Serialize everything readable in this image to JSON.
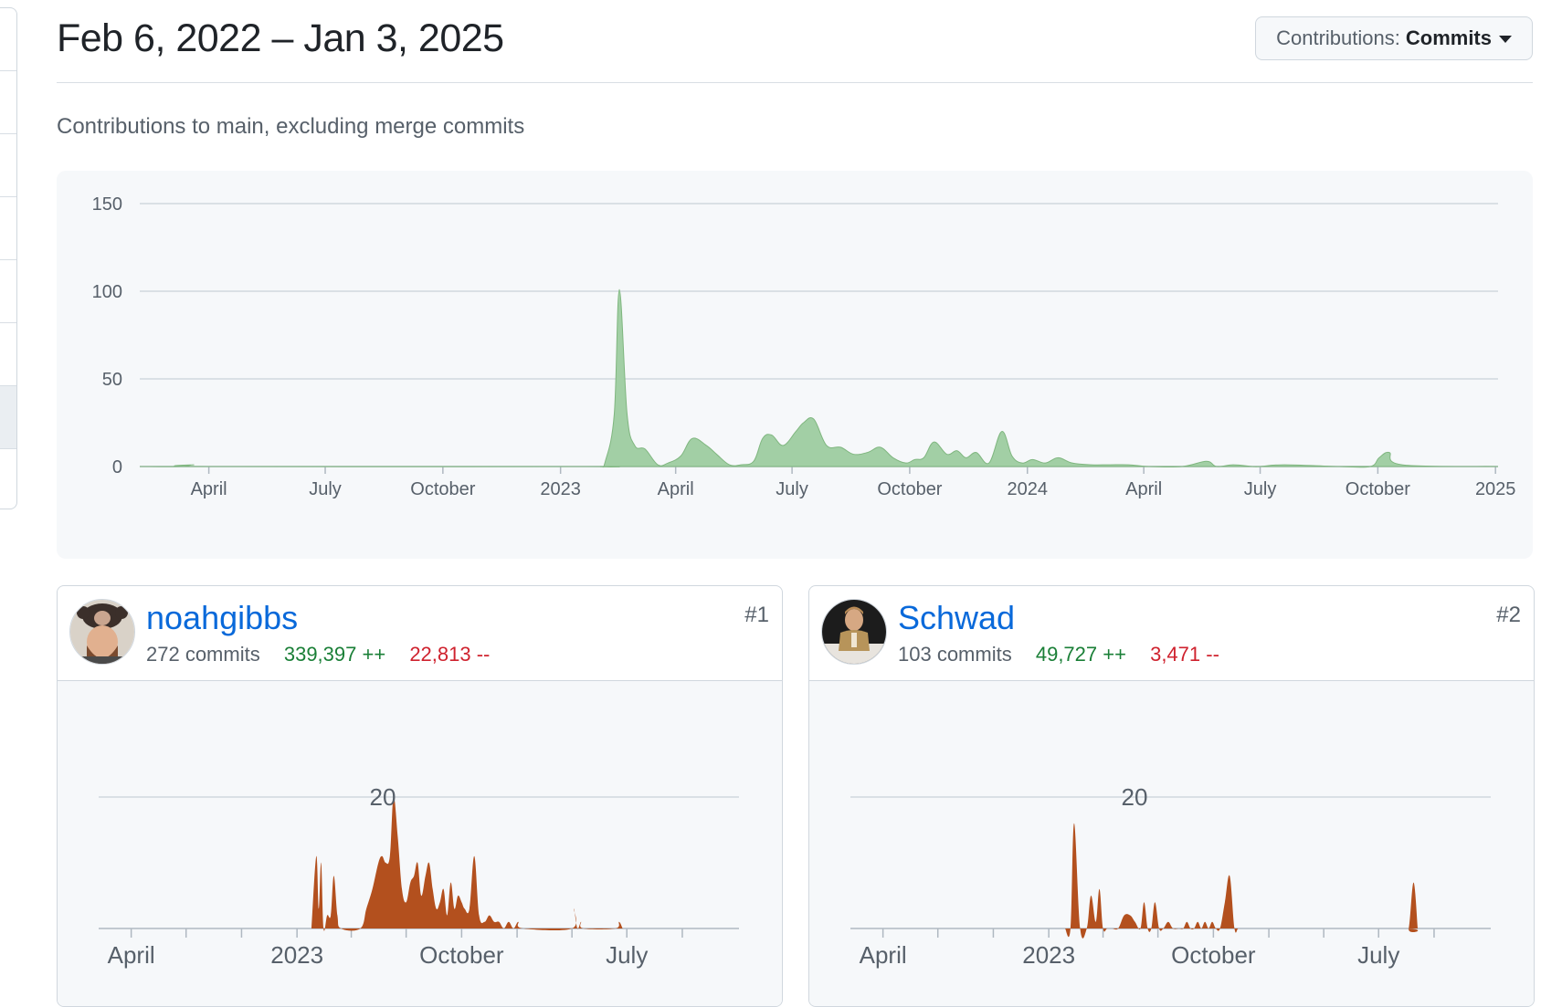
{
  "header": {
    "date_range": "Feb 6, 2022 – Jan 3, 2025",
    "dropdown_label": "Contributions:",
    "dropdown_value": "Commits"
  },
  "subtitle": "Contributions to main, excluding merge commits",
  "colors": {
    "main_fill": "#a2cfa5",
    "main_stroke": "#7fb67f",
    "contributor_fill": "#b3501e",
    "grid": "#d0d7de"
  },
  "contributors": [
    {
      "username": "noahgibbs",
      "commits": "272 commits",
      "additions": "339,397 ++",
      "deletions": "22,813 --",
      "rank": "#1",
      "avatar": "avatar-noahgibbs"
    },
    {
      "username": "Schwad",
      "commits": "103 commits",
      "additions": "49,727 ++",
      "deletions": "3,471 --",
      "rank": "#2",
      "avatar": "avatar-schwad"
    }
  ],
  "chart_data": [
    {
      "type": "area",
      "title": "",
      "ylim": [
        0,
        150
      ],
      "y_ticks": [
        0,
        50,
        100,
        150
      ],
      "x_range": [
        "2022-02-06",
        "2025-01-03"
      ],
      "x_tick_labels": [
        {
          "date": "2022-04-01",
          "label": "April"
        },
        {
          "date": "2022-07-01",
          "label": "July"
        },
        {
          "date": "2022-10-01",
          "label": "October"
        },
        {
          "date": "2023-01-01",
          "label": "2023"
        },
        {
          "date": "2023-04-01",
          "label": "April"
        },
        {
          "date": "2023-07-01",
          "label": "July"
        },
        {
          "date": "2023-10-01",
          "label": "October"
        },
        {
          "date": "2024-01-01",
          "label": "2024"
        },
        {
          "date": "2024-04-01",
          "label": "April"
        },
        {
          "date": "2024-07-01",
          "label": "July"
        },
        {
          "date": "2024-10-01",
          "label": "October"
        },
        {
          "date": "2025-01-01",
          "label": "2025"
        }
      ],
      "grid": true,
      "series": [
        {
          "x": [
            "2022-02-06",
            "2022-03-10",
            "2022-03-20",
            "2022-04-01",
            "2023-01-20",
            "2023-02-01",
            "2023-02-05",
            "2023-02-12",
            "2023-02-16",
            "2023-02-22",
            "2023-02-28",
            "2023-03-08",
            "2023-03-18",
            "2023-03-26",
            "2023-04-05",
            "2023-04-14",
            "2023-04-25",
            "2023-05-03",
            "2023-05-13",
            "2023-05-22",
            "2023-06-01",
            "2023-06-08",
            "2023-06-15",
            "2023-06-24",
            "2023-07-04",
            "2023-07-10",
            "2023-07-18",
            "2023-07-28",
            "2023-08-08",
            "2023-08-18",
            "2023-08-29",
            "2023-09-08",
            "2023-09-18",
            "2023-09-28",
            "2023-10-05",
            "2023-10-12",
            "2023-10-20",
            "2023-10-30",
            "2023-11-07",
            "2023-11-14",
            "2023-11-22",
            "2023-12-02",
            "2023-12-12",
            "2023-12-20",
            "2023-12-28",
            "2024-01-05",
            "2024-01-15",
            "2024-01-25",
            "2024-02-05",
            "2024-02-20",
            "2024-03-05",
            "2024-03-20",
            "2024-04-05",
            "2024-05-01",
            "2024-05-20",
            "2024-05-28",
            "2024-06-10",
            "2024-06-25",
            "2024-07-01",
            "2024-07-20",
            "2024-09-01",
            "2024-09-25",
            "2024-10-02",
            "2024-10-10",
            "2024-10-20",
            "2025-01-03"
          ],
          "y": [
            0,
            0,
            1,
            0,
            0,
            0,
            3,
            30,
            101,
            30,
            12,
            10,
            1,
            2,
            6,
            16,
            12,
            7,
            1,
            1,
            3,
            16,
            18,
            12,
            20,
            25,
            27,
            12,
            11,
            7,
            8,
            11,
            5,
            2,
            4,
            5,
            14,
            7,
            9,
            5,
            8,
            2,
            20,
            6,
            2,
            4,
            2,
            5,
            2,
            1,
            1,
            1,
            0,
            0,
            3,
            0,
            1,
            0,
            0,
            1,
            0,
            0,
            5,
            8,
            1,
            0
          ]
        }
      ]
    },
    {
      "type": "area",
      "title": "",
      "ytick": 20,
      "x_range": [
        "2022-02-06",
        "2025-01-03"
      ],
      "x_tick_labels": [
        {
          "date": "2022-04-01",
          "label": "April"
        },
        {
          "date": "2023-01-01",
          "label": "2023"
        },
        {
          "date": "2023-10-01",
          "label": "October"
        },
        {
          "date": "2024-07-01",
          "label": "July"
        }
      ],
      "grid": true,
      "series": [
        {
          "x": [
            "2023-01-25",
            "2023-02-02",
            "2023-02-06",
            "2023-02-10",
            "2023-02-14",
            "2023-02-20",
            "2023-02-26",
            "2023-03-03",
            "2023-03-09",
            "2023-03-15",
            "2023-04-16",
            "2023-04-26",
            "2023-05-06",
            "2023-05-16",
            "2023-05-22",
            "2023-05-28",
            "2023-06-04",
            "2023-06-10",
            "2023-06-17",
            "2023-06-24",
            "2023-07-01",
            "2023-07-08",
            "2023-07-14",
            "2023-07-20",
            "2023-07-26",
            "2023-08-02",
            "2023-08-08",
            "2023-08-14",
            "2023-08-20",
            "2023-08-26",
            "2023-09-01",
            "2023-09-07",
            "2023-09-13",
            "2023-09-19",
            "2023-09-25",
            "2023-10-01",
            "2023-10-06",
            "2023-10-14",
            "2023-10-22",
            "2023-10-30",
            "2023-11-08",
            "2023-11-16",
            "2023-11-24",
            "2023-12-02",
            "2023-12-10",
            "2023-12-18",
            "2023-12-26",
            "2024-01-03",
            "2024-01-11",
            "2024-04-01",
            "2024-04-04",
            "2024-04-10",
            "2024-04-16",
            "2024-04-20",
            "2024-06-12",
            "2024-06-18",
            "2024-06-24"
          ],
          "y": [
            0,
            11,
            3,
            10,
            0,
            2,
            2,
            8,
            2,
            0,
            0,
            3,
            6,
            10,
            11,
            10,
            11,
            20,
            14,
            6,
            4,
            7,
            8,
            10,
            5,
            8,
            10,
            6,
            3,
            4,
            6,
            2,
            7,
            3,
            5,
            4,
            3,
            3,
            11,
            2,
            1,
            2,
            1,
            1,
            0,
            1,
            0,
            1,
            0,
            0,
            3,
            0,
            1,
            0,
            0,
            1,
            0
          ]
        }
      ]
    },
    {
      "type": "area",
      "title": "",
      "ytick": 20,
      "x_range": [
        "2022-02-06",
        "2025-01-03"
      ],
      "x_tick_labels": [
        {
          "date": "2022-04-01",
          "label": "April"
        },
        {
          "date": "2023-01-01",
          "label": "2023"
        },
        {
          "date": "2023-10-01",
          "label": "October"
        },
        {
          "date": "2024-07-01",
          "label": "July"
        }
      ],
      "grid": true,
      "series": [
        {
          "x": [
            "2023-01-28",
            "2023-02-06",
            "2023-02-12",
            "2023-02-22",
            "2023-03-05",
            "2023-03-12",
            "2023-03-20",
            "2023-03-26",
            "2023-04-01",
            "2023-04-08",
            "2023-04-16",
            "2023-04-26",
            "2023-05-06",
            "2023-05-16",
            "2023-05-24",
            "2023-06-02",
            "2023-06-08",
            "2023-06-14",
            "2023-06-20",
            "2023-06-26",
            "2023-07-03",
            "2023-07-10",
            "2023-07-18",
            "2023-07-26",
            "2023-08-05",
            "2023-08-12",
            "2023-08-18",
            "2023-08-24",
            "2023-08-30",
            "2023-09-05",
            "2023-09-11",
            "2023-09-17",
            "2023-09-23",
            "2023-09-29",
            "2023-10-05",
            "2023-10-12",
            "2023-10-20",
            "2023-10-28",
            "2023-11-05",
            "2023-11-11",
            "2023-11-17",
            "2023-11-23",
            "2024-08-12",
            "2024-08-20",
            "2024-08-28",
            "2024-09-04"
          ],
          "y": [
            0,
            0,
            16,
            0,
            0,
            5,
            1,
            6,
            0,
            0,
            0,
            0,
            2,
            2,
            1,
            0,
            4,
            0,
            0,
            4,
            0,
            0,
            1,
            0,
            0,
            0,
            1,
            0,
            0,
            1,
            0,
            1,
            0,
            1,
            0,
            0,
            4,
            8,
            0,
            0,
            0,
            0,
            0,
            0,
            7,
            0
          ]
        }
      ]
    }
  ]
}
